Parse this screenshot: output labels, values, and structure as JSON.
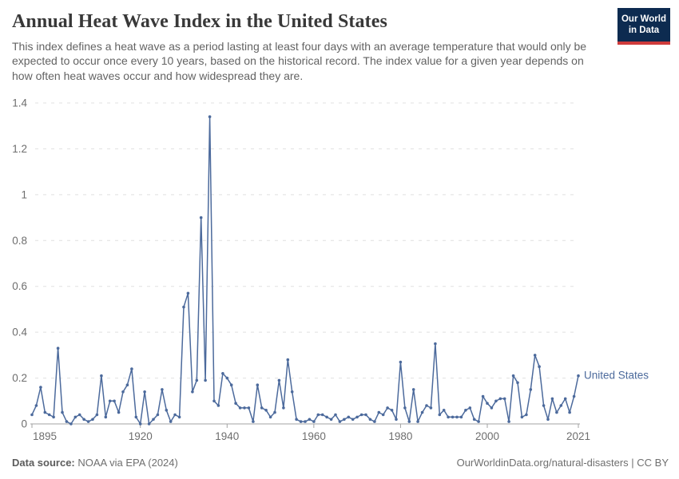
{
  "header": {
    "title": "Annual Heat Wave Index in the United States",
    "subtitle": "This index defines a heat wave as a period lasting at least four days with an average temperature that would only be expected to occur once every 10 years, based on the historical record. The index value for a given year depends on how often heat waves occur and how widespread they are.",
    "logo": {
      "line1": "Our World",
      "line2": "in Data",
      "bg_color": "#0d2b50",
      "accent_color": "#cf3b3b"
    }
  },
  "footer": {
    "source_label": "Data source:",
    "source_value": " NOAA via EPA (2024)",
    "link_text": "OurWorldinData.org/natural-disasters | CC BY"
  },
  "chart_data": {
    "type": "line",
    "title": "Annual Heat Wave Index in the United States",
    "xlabel": "",
    "ylabel": "",
    "xlim": [
      1895,
      2021
    ],
    "ylim": [
      0,
      1.4
    ],
    "x_ticks": [
      1895,
      1920,
      1940,
      1960,
      1980,
      2000,
      2021
    ],
    "y_ticks": [
      0,
      0.2,
      0.4,
      0.6,
      0.8,
      1,
      1.2,
      1.4
    ],
    "y_tick_labels": [
      "0",
      "0.2",
      "0.4",
      "0.6",
      "0.8",
      "1",
      "1.2",
      "1.4"
    ],
    "grid": "horizontal-dashed",
    "legend": "end-of-line-label",
    "line_color": "#4c6a9c",
    "marker": "dot",
    "series": [
      {
        "name": "United States",
        "x_start": 1895,
        "x_end": 2021,
        "values": [
          0.04,
          0.08,
          0.16,
          0.05,
          0.04,
          0.03,
          0.33,
          0.05,
          0.01,
          0.0,
          0.03,
          0.04,
          0.02,
          0.01,
          0.02,
          0.04,
          0.21,
          0.03,
          0.1,
          0.1,
          0.05,
          0.14,
          0.17,
          0.24,
          0.03,
          0.0,
          0.14,
          0.0,
          0.02,
          0.04,
          0.15,
          0.06,
          0.01,
          0.04,
          0.03,
          0.51,
          0.57,
          0.14,
          0.19,
          0.9,
          0.19,
          1.34,
          0.1,
          0.08,
          0.22,
          0.2,
          0.17,
          0.09,
          0.07,
          0.07,
          0.07,
          0.01,
          0.17,
          0.07,
          0.06,
          0.03,
          0.05,
          0.19,
          0.07,
          0.28,
          0.14,
          0.02,
          0.01,
          0.01,
          0.02,
          0.01,
          0.04,
          0.04,
          0.03,
          0.02,
          0.04,
          0.01,
          0.02,
          0.03,
          0.02,
          0.03,
          0.04,
          0.04,
          0.02,
          0.01,
          0.05,
          0.04,
          0.07,
          0.06,
          0.02,
          0.27,
          0.07,
          0.01,
          0.15,
          0.01,
          0.05,
          0.08,
          0.07,
          0.35,
          0.04,
          0.06,
          0.03,
          0.03,
          0.03,
          0.03,
          0.06,
          0.07,
          0.02,
          0.01,
          0.12,
          0.09,
          0.07,
          0.1,
          0.11,
          0.11,
          0.01,
          0.21,
          0.18,
          0.03,
          0.04,
          0.15,
          0.3,
          0.25,
          0.08,
          0.02,
          0.11,
          0.05,
          0.08,
          0.11,
          0.05,
          0.12,
          0.21
        ]
      }
    ]
  }
}
